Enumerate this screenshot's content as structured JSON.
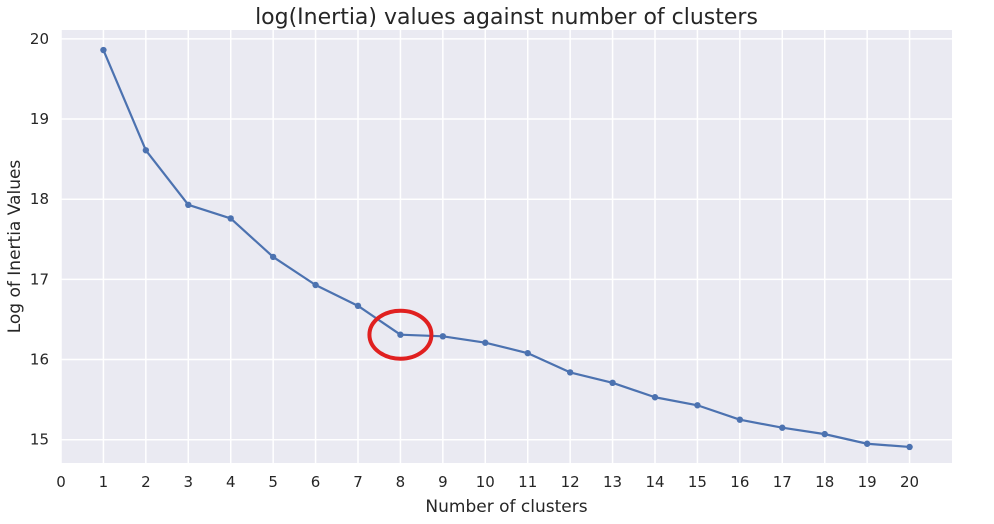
{
  "chart_data": {
    "type": "line",
    "title": "log(Inertia) values against number of clusters",
    "xlabel": "Number of clusters",
    "ylabel": "Log of Inertia Values",
    "x": [
      1,
      2,
      3,
      4,
      5,
      6,
      7,
      8,
      9,
      10,
      11,
      12,
      13,
      14,
      15,
      16,
      17,
      18,
      19,
      20
    ],
    "series": [
      {
        "values": [
          19.86,
          18.61,
          17.93,
          17.76,
          17.28,
          16.93,
          16.67,
          16.31,
          16.29,
          16.21,
          16.08,
          15.84,
          15.71,
          15.53,
          15.43,
          15.25,
          15.15,
          15.07,
          14.95,
          14.91
        ]
      }
    ],
    "xticks": [
      0,
      1,
      2,
      3,
      4,
      5,
      6,
      7,
      8,
      9,
      10,
      11,
      12,
      13,
      14,
      15,
      16,
      17,
      18,
      19,
      20
    ],
    "yticks": [
      15,
      16,
      17,
      18,
      19,
      20
    ],
    "xlim": [
      0,
      21
    ],
    "ylim": [
      14.71,
      20.11
    ],
    "grid": true,
    "colors": {
      "background": "#eaeaf2",
      "grid": "#ffffff",
      "line": "#4c72b0",
      "highlight": "#e02020"
    },
    "annotation": {
      "type": "circle",
      "x": 8,
      "y": 16.31
    }
  }
}
